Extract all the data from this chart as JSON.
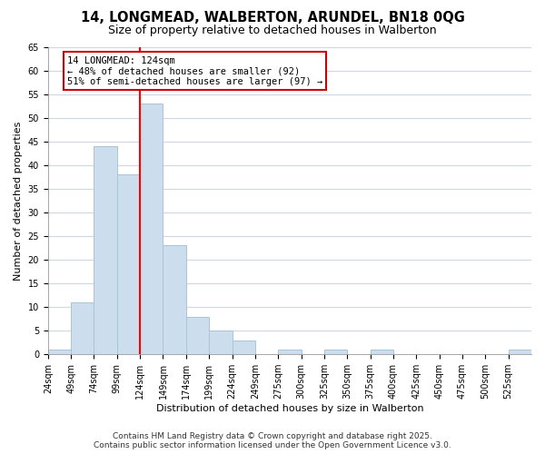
{
  "title": "14, LONGMEAD, WALBERTON, ARUNDEL, BN18 0QG",
  "subtitle": "Size of property relative to detached houses in Walberton",
  "xlabel": "Distribution of detached houses by size in Walberton",
  "ylabel": "Number of detached properties",
  "bin_labels": [
    "24sqm",
    "49sqm",
    "74sqm",
    "99sqm",
    "124sqm",
    "149sqm",
    "174sqm",
    "199sqm",
    "224sqm",
    "249sqm",
    "275sqm",
    "300sqm",
    "325sqm",
    "350sqm",
    "375sqm",
    "400sqm",
    "425sqm",
    "450sqm",
    "475sqm",
    "500sqm",
    "525sqm"
  ],
  "bar_heights": [
    1,
    11,
    44,
    38,
    53,
    23,
    8,
    5,
    3,
    0,
    1,
    0,
    1,
    0,
    1,
    0,
    0,
    0,
    0,
    0,
    1
  ],
  "bar_color": "#ccdded",
  "bar_edge_color": "#aac4d8",
  "annotation_title": "14 LONGMEAD: 124sqm",
  "annotation_line1": "← 48% of detached houses are smaller (92)",
  "annotation_line2": "51% of semi-detached houses are larger (97) →",
  "red_line_bin_index": 4,
  "ylim": [
    0,
    65
  ],
  "yticks": [
    0,
    5,
    10,
    15,
    20,
    25,
    30,
    35,
    40,
    45,
    50,
    55,
    60,
    65
  ],
  "footer_line1": "Contains HM Land Registry data © Crown copyright and database right 2025.",
  "footer_line2": "Contains public sector information licensed under the Open Government Licence v3.0.",
  "background_color": "#ffffff",
  "grid_color": "#ccd9e5",
  "title_fontsize": 10.5,
  "subtitle_fontsize": 9,
  "axis_label_fontsize": 8,
  "tick_fontsize": 7,
  "footer_fontsize": 6.5
}
